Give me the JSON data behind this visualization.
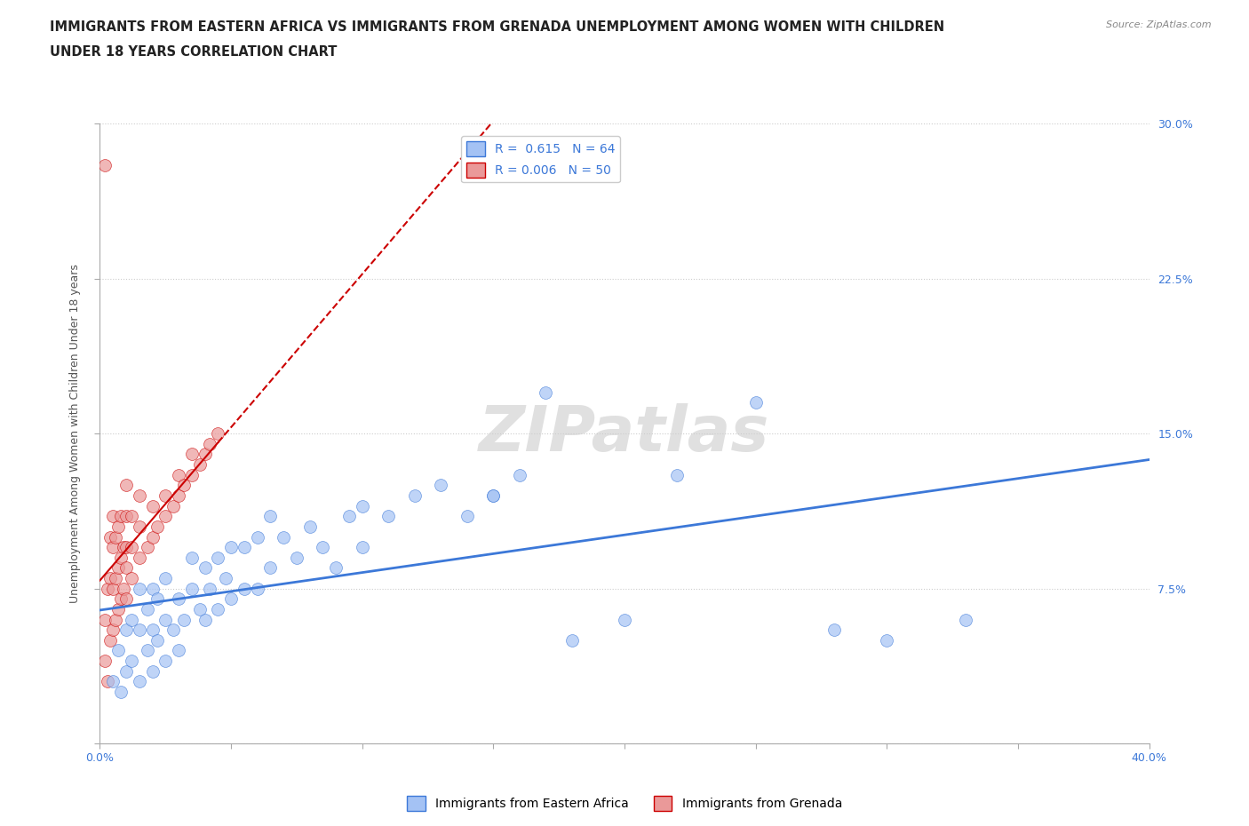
{
  "title_line1": "IMMIGRANTS FROM EASTERN AFRICA VS IMMIGRANTS FROM GRENADA UNEMPLOYMENT AMONG WOMEN WITH CHILDREN",
  "title_line2": "UNDER 18 YEARS CORRELATION CHART",
  "source": "Source: ZipAtlas.com",
  "ylabel": "Unemployment Among Women with Children Under 18 years",
  "xlim": [
    0.0,
    0.4
  ],
  "ylim": [
    0.0,
    0.3
  ],
  "blue_color": "#a4c2f4",
  "pink_color": "#ea9999",
  "blue_line_color": "#3c78d8",
  "pink_line_color": "#cc0000",
  "R_blue": 0.615,
  "N_blue": 64,
  "R_pink": 0.006,
  "N_pink": 50,
  "legend_label_blue": "Immigrants from Eastern Africa",
  "legend_label_pink": "Immigrants from Grenada",
  "watermark": "ZIPatlas",
  "grid_color": "#cccccc",
  "blue_scatter_x": [
    0.005,
    0.007,
    0.008,
    0.01,
    0.01,
    0.012,
    0.012,
    0.015,
    0.015,
    0.015,
    0.018,
    0.018,
    0.02,
    0.02,
    0.02,
    0.022,
    0.022,
    0.025,
    0.025,
    0.025,
    0.028,
    0.03,
    0.03,
    0.032,
    0.035,
    0.035,
    0.038,
    0.04,
    0.04,
    0.042,
    0.045,
    0.045,
    0.048,
    0.05,
    0.05,
    0.055,
    0.055,
    0.06,
    0.06,
    0.065,
    0.065,
    0.07,
    0.075,
    0.08,
    0.085,
    0.09,
    0.095,
    0.1,
    0.1,
    0.11,
    0.12,
    0.13,
    0.14,
    0.15,
    0.16,
    0.17,
    0.18,
    0.2,
    0.22,
    0.25,
    0.15,
    0.28,
    0.3,
    0.33
  ],
  "blue_scatter_y": [
    0.03,
    0.045,
    0.025,
    0.035,
    0.055,
    0.04,
    0.06,
    0.03,
    0.055,
    0.075,
    0.045,
    0.065,
    0.035,
    0.055,
    0.075,
    0.05,
    0.07,
    0.04,
    0.06,
    0.08,
    0.055,
    0.045,
    0.07,
    0.06,
    0.075,
    0.09,
    0.065,
    0.06,
    0.085,
    0.075,
    0.065,
    0.09,
    0.08,
    0.07,
    0.095,
    0.075,
    0.095,
    0.075,
    0.1,
    0.085,
    0.11,
    0.1,
    0.09,
    0.105,
    0.095,
    0.085,
    0.11,
    0.095,
    0.115,
    0.11,
    0.12,
    0.125,
    0.11,
    0.12,
    0.13,
    0.17,
    0.05,
    0.06,
    0.13,
    0.165,
    0.12,
    0.055,
    0.05,
    0.06
  ],
  "pink_scatter_x": [
    0.002,
    0.002,
    0.003,
    0.003,
    0.004,
    0.004,
    0.004,
    0.005,
    0.005,
    0.005,
    0.005,
    0.006,
    0.006,
    0.006,
    0.007,
    0.007,
    0.007,
    0.008,
    0.008,
    0.008,
    0.009,
    0.009,
    0.01,
    0.01,
    0.01,
    0.01,
    0.01,
    0.012,
    0.012,
    0.012,
    0.015,
    0.015,
    0.015,
    0.018,
    0.02,
    0.02,
    0.022,
    0.025,
    0.025,
    0.028,
    0.03,
    0.03,
    0.032,
    0.035,
    0.035,
    0.038,
    0.04,
    0.042,
    0.045,
    0.002
  ],
  "pink_scatter_y": [
    0.04,
    0.06,
    0.03,
    0.075,
    0.05,
    0.08,
    0.1,
    0.055,
    0.075,
    0.095,
    0.11,
    0.06,
    0.08,
    0.1,
    0.065,
    0.085,
    0.105,
    0.07,
    0.09,
    0.11,
    0.075,
    0.095,
    0.07,
    0.085,
    0.095,
    0.11,
    0.125,
    0.08,
    0.095,
    0.11,
    0.09,
    0.105,
    0.12,
    0.095,
    0.1,
    0.115,
    0.105,
    0.11,
    0.12,
    0.115,
    0.12,
    0.13,
    0.125,
    0.13,
    0.14,
    0.135,
    0.14,
    0.145,
    0.15,
    0.28
  ]
}
